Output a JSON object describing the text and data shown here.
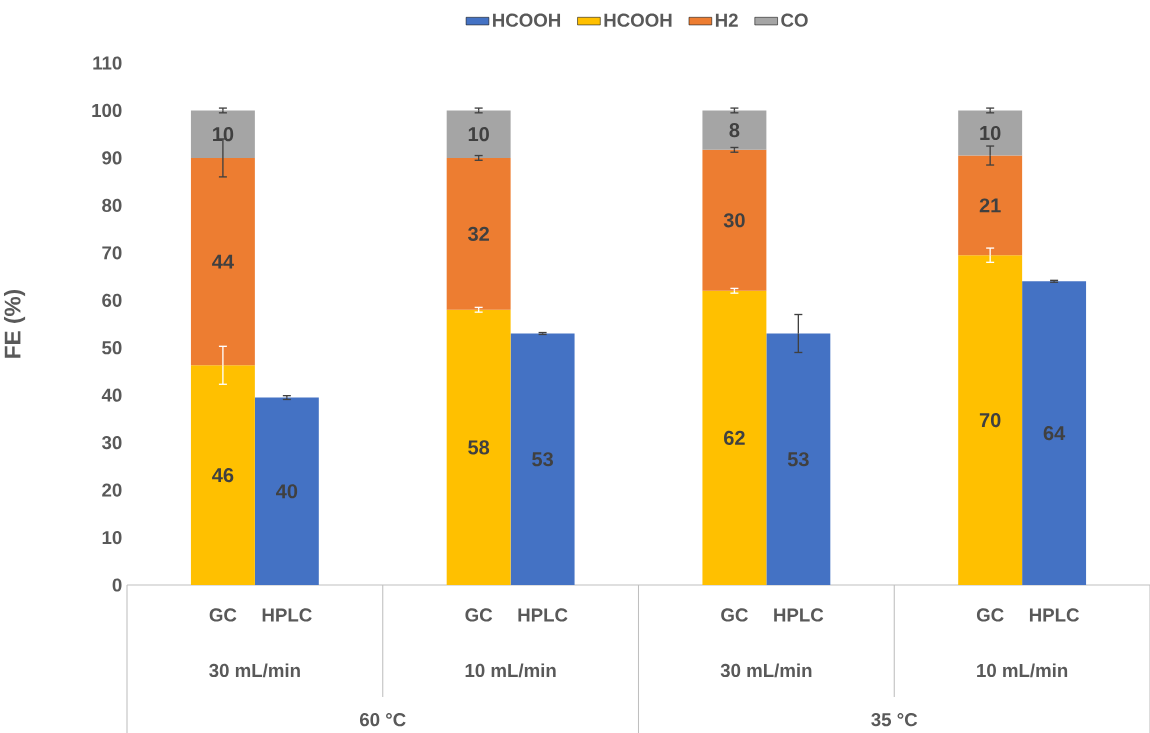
{
  "chart_data": {
    "type": "bar",
    "stacked": true,
    "ylabel": "FE (%)",
    "categories": [
      "GC",
      "HPLC",
      "GC",
      "HPLC",
      "GC",
      "HPLC",
      "GC",
      "HPLC"
    ],
    "series": [
      {
        "name": "HCOOH",
        "color": "#4472c4",
        "values": [
          null,
          39.5,
          null,
          53,
          null,
          53,
          null,
          64
        ],
        "errors": [
          null,
          0.4,
          null,
          0.2,
          null,
          4,
          null,
          0.2
        ],
        "value_labels": [
          null,
          "40",
          null,
          "53",
          null,
          "53",
          null,
          "64"
        ]
      },
      {
        "name": "HCOOH",
        "color": "#ffc000",
        "values": [
          46.3,
          null,
          58,
          null,
          62,
          null,
          69.5,
          null
        ],
        "errors": [
          4,
          null,
          0.5,
          null,
          0.5,
          null,
          1.5,
          null
        ],
        "value_labels": [
          "46",
          null,
          "58",
          null,
          "62",
          null,
          "70",
          null
        ]
      },
      {
        "name": "H2",
        "color": "#ed7d31",
        "values": [
          43.7,
          null,
          32,
          null,
          29.7,
          null,
          21,
          null
        ],
        "errors": [
          4,
          null,
          0.5,
          null,
          0.5,
          null,
          2,
          null
        ],
        "value_labels": [
          "44",
          null,
          "32",
          null,
          "30",
          null,
          "21",
          null
        ]
      },
      {
        "name": "CO",
        "color": "#a5a5a5",
        "values": [
          10,
          null,
          10,
          null,
          8.3,
          null,
          9.5,
          null
        ],
        "errors": [
          0.5,
          null,
          0.5,
          null,
          0.5,
          null,
          0.5,
          null
        ],
        "value_labels": [
          "10",
          null,
          "10",
          null,
          "8",
          null,
          "10",
          null
        ]
      }
    ],
    "ylim": [
      0,
      110
    ],
    "yticks": [
      0,
      10,
      20,
      30,
      40,
      50,
      60,
      70,
      80,
      90,
      100,
      110
    ],
    "legend": "top",
    "annotations": [
      "30 mL/min",
      "10 mL/min",
      "30 mL/min",
      "10 mL/min",
      "60 °C",
      "35 °C"
    ]
  }
}
